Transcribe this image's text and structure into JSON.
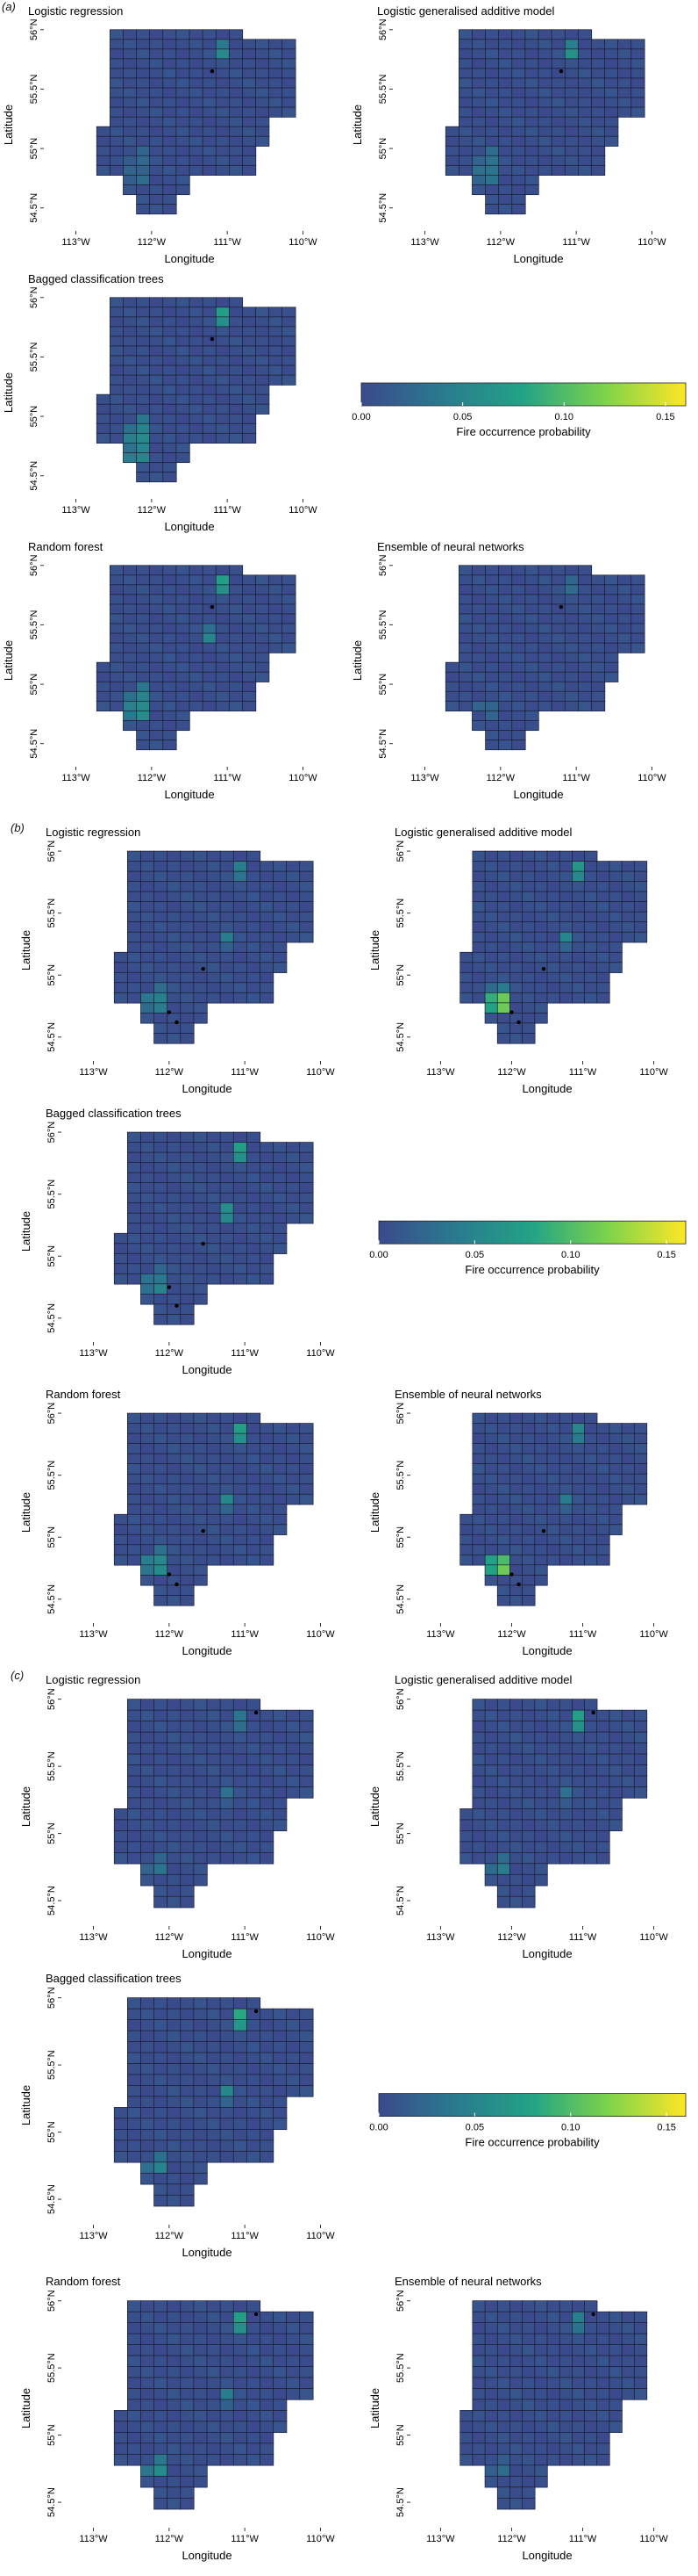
{
  "chart_data": {
    "type": "heatmap",
    "xlabel": "Longitude",
    "ylabel": "Latitude",
    "x_ticks": [
      "113°W",
      "112°W",
      "111°W",
      "110°W"
    ],
    "y_ticks": [
      "54.5°N",
      "55°N",
      "55.5°N",
      "56°N"
    ],
    "colorbar": {
      "title": "Fire occurrence probability",
      "ticks": [
        "0.00",
        "0.05",
        "0.10",
        "0.15"
      ],
      "range": [
        0,
        0.16
      ],
      "colors": [
        "#3b4a8c",
        "#2a7a8e",
        "#23a386",
        "#7ed34a",
        "#fde725"
      ]
    },
    "sections": [
      {
        "label": "(a)",
        "panels": [
          {
            "title": "Logistic regression",
            "hotspots": [
              [
                0.06,
                0.88
              ],
              [
                0.03,
                0.2
              ],
              [
                0.03,
                0.22
              ],
              [
                0.03,
                0.3
              ]
            ],
            "fires": [
              [
                -111.2,
                55.65
              ]
            ]
          },
          {
            "title": "Logistic generalised additive model",
            "hotspots": [
              [
                0.07,
                0.88
              ],
              [
                0.04,
                0.2
              ],
              [
                0.05,
                0.22
              ],
              [
                0.04,
                0.3
              ]
            ],
            "fires": [
              [
                -111.2,
                55.65
              ]
            ]
          },
          {
            "title": "Bagged classification trees",
            "hotspots": [
              [
                0.09,
                0.9
              ],
              [
                0.06,
                0.2
              ],
              [
                0.08,
                0.22
              ],
              [
                0.06,
                0.3
              ],
              [
                0.07,
                0.15
              ]
            ],
            "fires": [
              [
                -111.2,
                55.65
              ]
            ]
          },
          {
            "title": "Random forest",
            "hotspots": [
              [
                0.09,
                0.9
              ],
              [
                0.07,
                0.2
              ],
              [
                0.08,
                0.22
              ],
              [
                0.06,
                0.3
              ],
              [
                0.05,
                0.62
              ]
            ],
            "fires": [
              [
                -111.2,
                55.65
              ]
            ]
          },
          {
            "title": "Ensemble of neural networks",
            "hotspots": [
              [
                0.03,
                0.88
              ],
              [
                0.03,
                0.22
              ]
            ],
            "fires": [
              [
                -111.2,
                55.65
              ]
            ]
          }
        ]
      },
      {
        "label": "(b)",
        "panels": [
          {
            "title": "Logistic regression",
            "hotspots": [
              [
                0.05,
                0.9
              ],
              [
                0.05,
                0.2
              ],
              [
                0.06,
                0.24
              ],
              [
                0.04,
                0.55
              ]
            ],
            "fires": [
              [
                -112.0,
                54.7
              ],
              [
                -111.9,
                54.62
              ],
              [
                -111.55,
                55.05
              ]
            ]
          },
          {
            "title": "Logistic generalised additive model",
            "hotspots": [
              [
                0.08,
                0.9
              ],
              [
                0.15,
                0.2
              ],
              [
                0.16,
                0.22
              ],
              [
                0.06,
                0.26
              ],
              [
                0.05,
                0.55
              ]
            ],
            "fires": [
              [
                -112.0,
                54.7
              ],
              [
                -111.9,
                54.62
              ],
              [
                -111.55,
                55.05
              ]
            ]
          },
          {
            "title": "Bagged classification trees",
            "hotspots": [
              [
                0.09,
                0.9
              ],
              [
                0.06,
                0.2
              ],
              [
                0.05,
                0.24
              ],
              [
                0.07,
                0.58
              ]
            ],
            "fires": [
              [
                -112.0,
                54.75
              ],
              [
                -111.9,
                54.6
              ],
              [
                -111.55,
                55.1
              ]
            ]
          },
          {
            "title": "Random forest",
            "hotspots": [
              [
                0.09,
                0.9
              ],
              [
                0.07,
                0.2
              ],
              [
                0.07,
                0.24
              ],
              [
                0.05,
                0.55
              ]
            ],
            "fires": [
              [
                -112.0,
                54.7
              ],
              [
                -111.9,
                54.62
              ],
              [
                -111.55,
                55.05
              ]
            ]
          },
          {
            "title": "Ensemble of neural networks",
            "hotspots": [
              [
                0.06,
                0.9
              ],
              [
                0.15,
                0.2
              ],
              [
                0.14,
                0.22
              ],
              [
                0.04,
                0.55
              ]
            ],
            "fires": [
              [
                -112.0,
                54.7
              ],
              [
                -111.9,
                54.62
              ],
              [
                -111.55,
                55.05
              ]
            ]
          }
        ]
      },
      {
        "label": "(c)",
        "panels": [
          {
            "title": "Logistic regression",
            "hotspots": [
              [
                0.04,
                0.9
              ],
              [
                0.04,
                0.2
              ],
              [
                0.03,
                0.55
              ]
            ],
            "fires": [
              [
                -110.85,
                55.9
              ]
            ]
          },
          {
            "title": "Logistic generalised additive model",
            "hotspots": [
              [
                0.09,
                0.9
              ],
              [
                0.05,
                0.2
              ],
              [
                0.03,
                0.55
              ]
            ],
            "fires": [
              [
                -110.85,
                55.9
              ]
            ]
          },
          {
            "title": "Bagged classification trees",
            "hotspots": [
              [
                0.1,
                0.9
              ],
              [
                0.06,
                0.2
              ],
              [
                0.05,
                0.55
              ]
            ],
            "fires": [
              [
                -110.85,
                55.9
              ]
            ]
          },
          {
            "title": "Random forest",
            "hotspots": [
              [
                0.09,
                0.9
              ],
              [
                0.07,
                0.2
              ],
              [
                0.04,
                0.55
              ]
            ],
            "fires": [
              [
                -110.85,
                55.9
              ]
            ]
          },
          {
            "title": "Ensemble of neural networks",
            "hotspots": [
              [
                0.05,
                0.9
              ],
              [
                0.03,
                0.2
              ]
            ],
            "fires": [
              [
                -110.85,
                55.9
              ]
            ]
          }
        ]
      }
    ]
  }
}
